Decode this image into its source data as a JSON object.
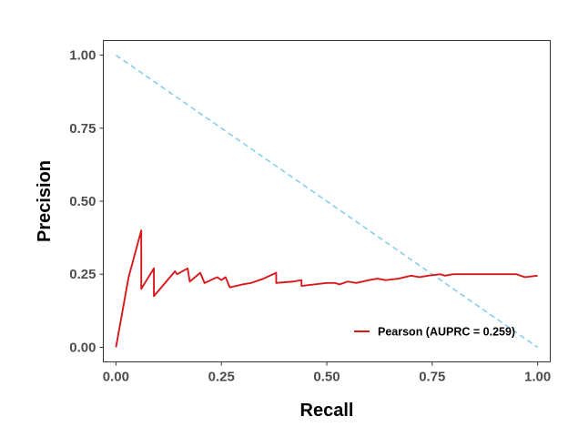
{
  "chart_data": {
    "type": "line",
    "title": "",
    "xlabel": "Recall",
    "ylabel": "Precision",
    "xlim": [
      -0.03,
      1.03
    ],
    "ylim": [
      -0.05,
      1.05
    ],
    "x_ticks": [
      0,
      0.25,
      0.5,
      0.75,
      1
    ],
    "y_ticks": [
      0,
      0.25,
      0.5,
      0.75,
      1
    ],
    "x_tick_labels": [
      "0.00",
      "0.25",
      "0.50",
      "0.75",
      "1.00"
    ],
    "y_tick_labels": [
      "0.00",
      "0.25",
      "0.50",
      "0.75",
      "1.00"
    ],
    "grid": false,
    "legend": {
      "position": "bottom-right",
      "entries": [
        {
          "label": "Pearson (AUPRC = 0.259)",
          "color": "#d7191c"
        }
      ]
    },
    "series": [
      {
        "name": "Pearson (AUPRC = 0.259)",
        "color": "#d7191c",
        "style": "solid",
        "x": [
          0,
          0.03,
          0.06,
          0.06,
          0.09,
          0.09,
          0.14,
          0.145,
          0.17,
          0.175,
          0.2,
          0.21,
          0.24,
          0.25,
          0.26,
          0.27,
          0.3,
          0.32,
          0.35,
          0.38,
          0.38,
          0.42,
          0.44,
          0.44,
          0.47,
          0.5,
          0.52,
          0.53,
          0.55,
          0.57,
          0.6,
          0.62,
          0.64,
          0.67,
          0.7,
          0.72,
          0.74,
          0.77,
          0.78,
          0.8,
          0.85,
          0.9,
          0.95,
          0.97,
          1.0
        ],
        "y": [
          0,
          0.24,
          0.4,
          0.2,
          0.27,
          0.175,
          0.26,
          0.25,
          0.27,
          0.225,
          0.255,
          0.22,
          0.24,
          0.23,
          0.24,
          0.205,
          0.215,
          0.22,
          0.235,
          0.255,
          0.22,
          0.225,
          0.23,
          0.21,
          0.215,
          0.22,
          0.22,
          0.215,
          0.225,
          0.22,
          0.23,
          0.235,
          0.23,
          0.235,
          0.245,
          0.24,
          0.245,
          0.25,
          0.245,
          0.25,
          0.25,
          0.25,
          0.25,
          0.24,
          0.245
        ]
      },
      {
        "name": "",
        "color": "#87ceeb",
        "style": "dashed",
        "x": [
          0,
          1
        ],
        "y": [
          1,
          0
        ]
      }
    ]
  }
}
